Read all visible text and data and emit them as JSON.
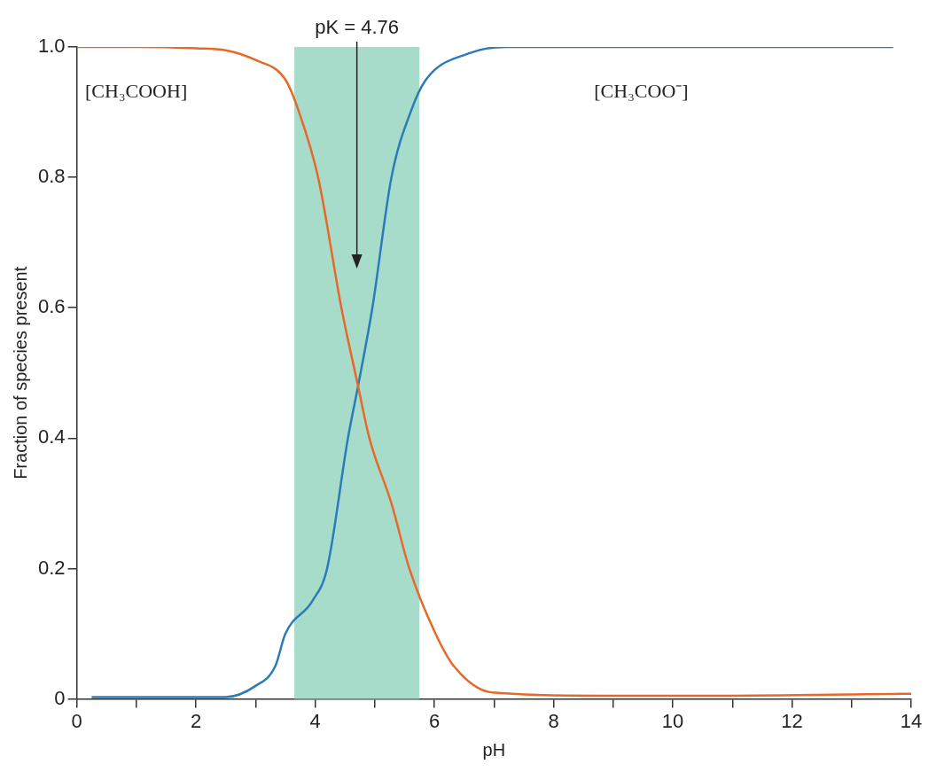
{
  "chart_data": {
    "type": "line",
    "xlabel": "pH",
    "ylabel": "Fraction of species present",
    "xlim": [
      0,
      14
    ],
    "ylim": [
      0,
      1
    ],
    "xticks": [
      0,
      {
        "value": 1,
        "label": null
      },
      2,
      {
        "value": 3,
        "label": null
      },
      4,
      {
        "value": 5,
        "label": null
      },
      6,
      {
        "value": 7,
        "label": null
      },
      8,
      {
        "value": 9,
        "label": null
      },
      10,
      {
        "value": 11,
        "label": null
      },
      12,
      {
        "value": 13,
        "label": null
      },
      14
    ],
    "yticks": [
      0,
      0.2,
      0.4,
      0.6,
      0.8,
      {
        "value": 1,
        "label": "1.0"
      }
    ],
    "marker": "none",
    "legend": false,
    "series": [
      {
        "name": "[CH₃COOH]",
        "color": "#e8682a",
        "x": [
          0,
          1,
          2,
          2.5,
          3,
          3.5,
          3.73,
          4.05,
          4.44,
          4.72,
          4.91,
          5.28,
          5.58,
          6.02,
          6.33,
          6.97,
          8.8,
          11,
          14
        ],
        "values": [
          1,
          1,
          0.998,
          0.995,
          0.98,
          0.95,
          0.9,
          0.8,
          0.6,
          0.48,
          0.4,
          0.3,
          0.2,
          0.1,
          0.05,
          0.01,
          0.005,
          0.005,
          0.008
        ]
      },
      {
        "name": "[CH₃COO⁻]",
        "color": "#2b7bb9",
        "x": [
          0.25,
          1,
          2,
          2.5,
          3,
          3.33,
          3.5,
          3.95,
          4.2,
          4.55,
          4.72,
          4.96,
          5.28,
          5.6,
          5.86,
          6.57,
          7.2,
          10,
          13.7
        ],
        "values": [
          0.003,
          0.003,
          0.003,
          0.003,
          0.02,
          0.05,
          0.1,
          0.15,
          0.2,
          0.4,
          0.48,
          0.6,
          0.8,
          0.9,
          0.95,
          0.99,
          1,
          1,
          1
        ]
      }
    ],
    "bands": [
      {
        "axis": "x",
        "from": 3.65,
        "to": 5.75,
        "color": "#a6dcc9"
      }
    ],
    "annotations": [
      "pK = 4.76"
    ]
  }
}
